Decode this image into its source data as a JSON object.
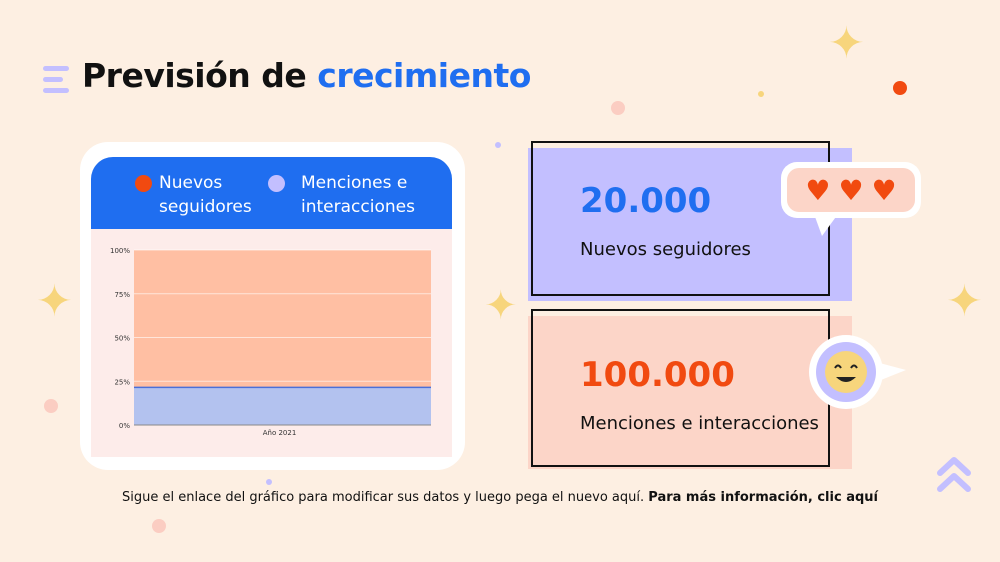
{
  "title": {
    "prefix": "Previsión de",
    "accent": "crecimiento"
  },
  "legend": [
    {
      "label_line1": "Nuevos",
      "label_line2": "seguidores",
      "color": "#f14a10"
    },
    {
      "label_line1": "Menciones e",
      "label_line2": "interacciones",
      "color": "#c3bfff"
    }
  ],
  "chart_data": {
    "type": "area",
    "stacked": "percent",
    "categories": [
      "Año 2021"
    ],
    "y_ticks": [
      "100%",
      "75%",
      "50%",
      "25%",
      "0%"
    ],
    "ylim": [
      0,
      100
    ],
    "series": [
      {
        "name": "Menciones e interacciones",
        "values": [
          21.5
        ],
        "color": "#b3c2ef"
      },
      {
        "name": "Nuevos seguidores",
        "values": [
          78.5
        ],
        "color": "#ffbfa3"
      }
    ],
    "grid": true
  },
  "stats": [
    {
      "value": "20.000",
      "label": "Nuevos seguidores",
      "value_color": "#1f6ef0",
      "bg": "#c3bfff"
    },
    {
      "value": "100.000",
      "label": "Menciones e interacciones",
      "value_color": "#f14a10",
      "bg": "#fcd5c8"
    }
  ],
  "footer": {
    "text": "Sigue el enlace del gráfico para modificar sus datos y luego pega el nuevo aquí. ",
    "link": "Para más información, clic aquí"
  },
  "icons": [
    "menu-icon",
    "heart-icon",
    "smiley-icon",
    "double-chevron-up-icon",
    "star-icon"
  ]
}
